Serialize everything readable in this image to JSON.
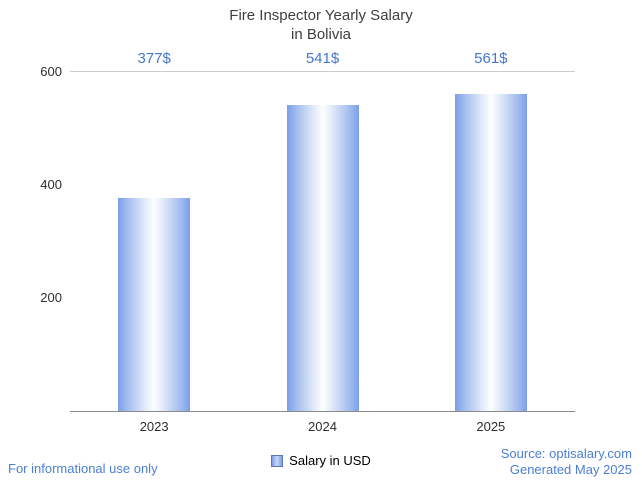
{
  "chart_data": {
    "type": "bar",
    "title": "Fire Inspector Yearly Salary",
    "subtitle": "in Bolivia",
    "categories": [
      "2023",
      "2024",
      "2025"
    ],
    "values": [
      377,
      541,
      561
    ],
    "value_labels": [
      "377$",
      "541$",
      "561$"
    ],
    "ylim": [
      0,
      600
    ],
    "yticks": [
      200,
      400,
      600
    ],
    "grid": "top-line-only",
    "legend": {
      "label": "Salary in USD",
      "position": "bottom"
    }
  },
  "footer": {
    "disclaimer": "For informational use only",
    "source": "Source: optisalary.com",
    "generated": "Generated May 2025"
  },
  "colors": {
    "bar_edge": "#7c9ee8",
    "bar_center": "#fdfeff",
    "value_label_text": "#4676d0",
    "footer_text": "#4a7fd4",
    "title_text": "#3f3f3f",
    "axis_line": "#8a8a8a",
    "gridline": "#cccccc"
  }
}
